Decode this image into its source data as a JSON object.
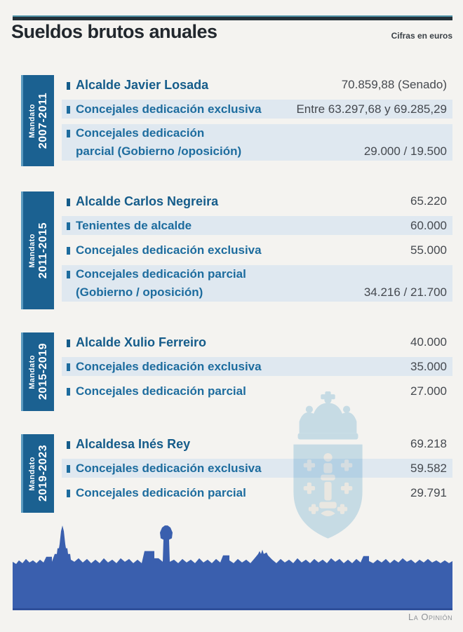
{
  "header": {
    "title": "Sueldos brutos anuales",
    "note": "Cifras en euros"
  },
  "sections": [
    {
      "mandate_word": "Mandato",
      "years": "2007-2011",
      "rows": [
        {
          "label": "Alcalde Javier Losada",
          "value": "70.859,88 (Senado)",
          "bold": true,
          "banded": false
        },
        {
          "label": "Concejales dedicación exclusiva",
          "value": "Entre 63.297,68 y 69.285,29",
          "bold": false,
          "banded": true
        },
        {
          "label": "Concejales dedicación",
          "label_line2": "parcial (Gobierno /oposición)",
          "value": "29.000 / 19.500",
          "bold": false,
          "banded": true
        }
      ]
    },
    {
      "mandate_word": "Mandato",
      "years": "2011-2015",
      "rows": [
        {
          "label": "Alcalde Carlos Negreira",
          "value": "65.220",
          "bold": true,
          "banded": false
        },
        {
          "label": "Tenientes de alcalde",
          "value": "60.000",
          "bold": false,
          "banded": true
        },
        {
          "label": "Concejales dedicación exclusiva",
          "value": "55.000",
          "bold": false,
          "banded": false
        },
        {
          "label": "Concejales dedicación parcial",
          "label_line2": "(Gobierno / oposición)",
          "value": "34.216 / 21.700",
          "bold": false,
          "banded": true
        }
      ]
    },
    {
      "mandate_word": "Mandato",
      "years": "2015-2019",
      "rows": [
        {
          "label": "Alcalde Xulio Ferreiro",
          "value": "40.000",
          "bold": true,
          "banded": false
        },
        {
          "label": "Concejales dedicación exclusiva",
          "value": "35.000",
          "bold": false,
          "banded": true
        },
        {
          "label": "Concejales dedicación parcial",
          "value": "27.000",
          "bold": false,
          "banded": false
        }
      ]
    },
    {
      "mandate_word": "Mandato",
      "years": "2019-2023",
      "rows": [
        {
          "label": "Alcaldesa Inés Rey",
          "value": "69.218",
          "bold": true,
          "banded": false
        },
        {
          "label": "Concejales dedicación exclusiva",
          "value": "59.582",
          "bold": false,
          "banded": true
        },
        {
          "label": "Concejales dedicación parcial",
          "value": "29.791",
          "bold": false,
          "banded": false
        }
      ]
    }
  ],
  "footer": {
    "credit": "La Opinión"
  },
  "colors": {
    "tab_blue": "#1b6191",
    "tab_edge_blue": "#5b9bc0",
    "label_blue": "#1d6c9e",
    "alcalde_blue": "#155c8a",
    "value_gray": "#45494f",
    "band_blue": "#dfe8f0",
    "skyline_blue": "#3a5fae",
    "watermark_blue": "#cde5f3",
    "page_bg": "#f4f3f0",
    "rule_dark": "#233039",
    "rule_teal": "#4e93a8",
    "credit_gray": "#8d9196"
  },
  "chart_data": {
    "type": "table",
    "title": "Sueldos brutos anuales",
    "subtitle": "Cifras en euros",
    "groups": [
      {
        "mandate": "2007-2011",
        "rows": [
          [
            "Alcalde Javier Losada",
            "70.859,88 (Senado)"
          ],
          [
            "Concejales dedicación exclusiva",
            "Entre 63.297,68 y 69.285,29"
          ],
          [
            "Concejales dedicación parcial (Gobierno /oposición)",
            "29.000 / 19.500"
          ]
        ]
      },
      {
        "mandate": "2011-2015",
        "rows": [
          [
            "Alcalde Carlos Negreira",
            "65.220"
          ],
          [
            "Tenientes de alcalde",
            "60.000"
          ],
          [
            "Concejales dedicación exclusiva",
            "55.000"
          ],
          [
            "Concejales dedicación parcial (Gobierno / oposición)",
            "34.216 / 21.700"
          ]
        ]
      },
      {
        "mandate": "2015-2019",
        "rows": [
          [
            "Alcalde Xulio Ferreiro",
            "40.000"
          ],
          [
            "Concejales dedicación exclusiva",
            "35.000"
          ],
          [
            "Concejales dedicación parcial",
            "27.000"
          ]
        ]
      },
      {
        "mandate": "2019-2023",
        "rows": [
          [
            "Alcaldesa Inés Rey",
            "69.218"
          ],
          [
            "Concejales dedicación exclusiva",
            "59.582"
          ],
          [
            "Concejales dedicación parcial",
            "29.791"
          ]
        ]
      }
    ]
  }
}
